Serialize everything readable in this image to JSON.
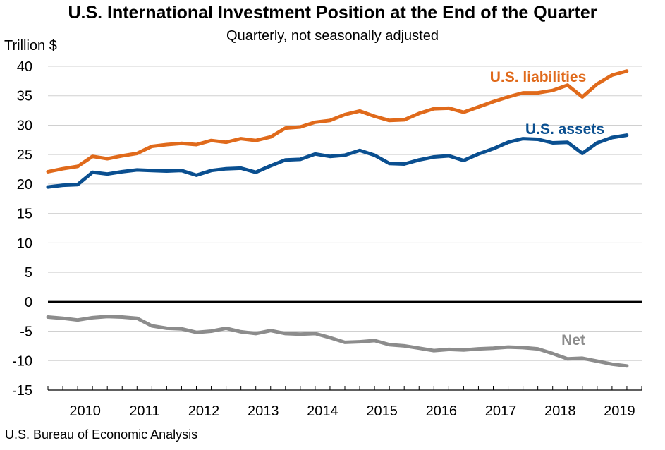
{
  "chart_data": {
    "type": "line",
    "title": "U.S. International Investment Position at the End of the Quarter",
    "subtitle": "Quarterly, not seasonally adjusted",
    "ylabel": "Trillion $",
    "xlabel": "",
    "ylim": [
      -15,
      40
    ],
    "yticks": [
      40,
      35,
      30,
      25,
      20,
      15,
      10,
      5,
      0,
      -5,
      -10,
      -15
    ],
    "years": [
      "2010",
      "2011",
      "2012",
      "2013",
      "2014",
      "2015",
      "2016",
      "2017",
      "2018",
      "2019"
    ],
    "x_start": 2009.75,
    "x_end": 2019.75,
    "x_step": 0.25,
    "series": [
      {
        "name": "U.S. liabilities",
        "color": "#E06A1B",
        "values": [
          22.1,
          22.6,
          23.0,
          24.7,
          24.3,
          24.8,
          25.2,
          26.4,
          26.7,
          26.9,
          26.7,
          27.4,
          27.1,
          27.7,
          27.4,
          28.0,
          29.5,
          29.7,
          30.5,
          30.8,
          31.8,
          32.4,
          31.5,
          30.8,
          30.9,
          32.0,
          32.8,
          32.9,
          32.2,
          33.1,
          34.0,
          34.8,
          35.5,
          35.5,
          35.9,
          36.8,
          34.8,
          37.0,
          38.5,
          39.2
        ]
      },
      {
        "name": "U.S. assets",
        "color": "#0A4F90",
        "values": [
          19.5,
          19.8,
          19.9,
          22.0,
          21.7,
          22.1,
          22.4,
          22.3,
          22.2,
          22.3,
          21.5,
          22.3,
          22.6,
          22.7,
          22.0,
          23.1,
          24.1,
          24.2,
          25.1,
          24.7,
          24.9,
          25.7,
          24.9,
          23.5,
          23.4,
          24.1,
          24.6,
          24.8,
          24.0,
          25.1,
          26.0,
          27.1,
          27.7,
          27.6,
          27.0,
          27.1,
          25.2,
          27.0,
          27.9,
          28.3
        ]
      },
      {
        "name": "Net",
        "color": "#8C8C8C",
        "values": [
          -2.6,
          -2.8,
          -3.1,
          -2.7,
          -2.5,
          -2.6,
          -2.8,
          -4.1,
          -4.5,
          -4.6,
          -5.2,
          -5.0,
          -4.5,
          -5.1,
          -5.4,
          -4.9,
          -5.4,
          -5.5,
          -5.4,
          -6.1,
          -6.9,
          -6.8,
          -6.6,
          -7.3,
          -7.5,
          -7.9,
          -8.3,
          -8.1,
          -8.2,
          -8.0,
          -7.9,
          -7.7,
          -7.8,
          -8.0,
          -8.8,
          -9.7,
          -9.6,
          -10.1,
          -10.6,
          -10.9
        ]
      }
    ],
    "series_labels": [
      {
        "text": "U.S. liabilities",
        "color": "#E06A1B"
      },
      {
        "text": "U.S. assets",
        "color": "#0A4F90"
      },
      {
        "text": "Net",
        "color": "#8C8C8C"
      }
    ]
  },
  "source": "U.S. Bureau of Economic Analysis"
}
